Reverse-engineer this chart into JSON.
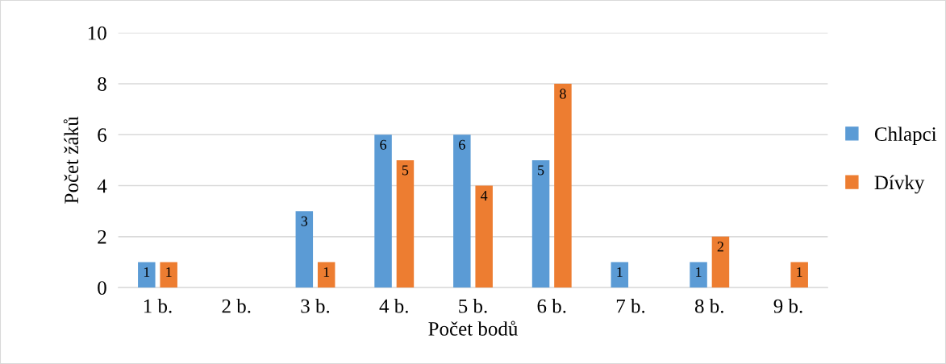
{
  "chart_data": {
    "type": "bar",
    "xlabel": "Počet bodů",
    "ylabel": "Počet žáků",
    "categories": [
      "1 b.",
      "2 b.",
      "3 b.",
      "4 b.",
      "5 b.",
      "6 b.",
      "7 b.",
      "8 b.",
      "9 b."
    ],
    "series": [
      {
        "name": "Chlapci",
        "color": "#5b9bd5",
        "values": [
          1,
          0,
          3,
          6,
          6,
          5,
          1,
          1,
          0
        ],
        "value_labels": [
          "1",
          null,
          "3",
          "6",
          "6",
          "5",
          "1",
          "1",
          null
        ]
      },
      {
        "name": "Dívky",
        "color": "#ed7d31",
        "values": [
          1,
          0,
          1,
          5,
          4,
          8,
          0,
          2,
          1
        ],
        "value_labels": [
          "1",
          null,
          "1",
          "5",
          "4",
          "8",
          null,
          "2",
          "1"
        ]
      }
    ],
    "ylim": [
      0,
      10
    ],
    "yticks": [
      0,
      2,
      4,
      6,
      8,
      10
    ],
    "grid": "y",
    "legend": "right"
  }
}
